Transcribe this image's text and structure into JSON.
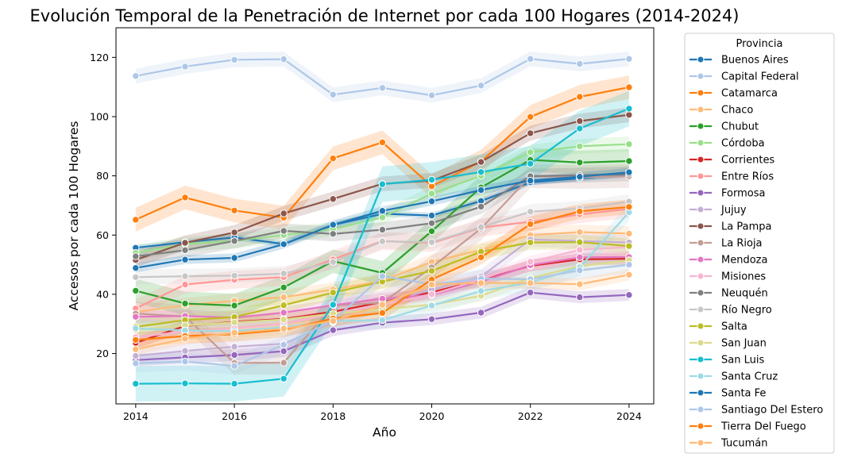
{
  "chart_data": {
    "type": "line",
    "title": "Evolución Temporal de la Penetración de Internet por cada 100 Hogares (2014-2024)",
    "xlabel": "Año",
    "ylabel": "Accesos por cada 100 Hogares",
    "xlim": [
      2013.6,
      2024.5
    ],
    "ylim": [
      3,
      130
    ],
    "xticks": [
      2014,
      2016,
      2018,
      2020,
      2022,
      2024
    ],
    "yticks": [
      20,
      40,
      60,
      80,
      100,
      120
    ],
    "grid": false,
    "legend_title": "Provincia",
    "legend_placement": "outside-right",
    "x": [
      2014,
      2015,
      2016,
      2017,
      2018,
      2019,
      2020,
      2021,
      2022,
      2023,
      2024
    ],
    "series": [
      {
        "name": "Buenos Aires",
        "color": "#1f77b4",
        "values": [
          55.7,
          57.6,
          59.2,
          57.0,
          63.4,
          67.2,
          66.6,
          71.5,
          77.8,
          79.2,
          80.5
        ],
        "band": 1.0
      },
      {
        "name": "Capital Federal",
        "color": "#aec7e8",
        "values": [
          113.7,
          116.9,
          119.2,
          119.4,
          107.4,
          109.7,
          107.2,
          110.5,
          119.5,
          117.8,
          119.5
        ],
        "band": 2.5
      },
      {
        "name": "Catamarca",
        "color": "#ff7f0e",
        "values": [
          65.2,
          72.7,
          68.3,
          65.9,
          85.9,
          91.3,
          76.5,
          84.8,
          99.9,
          106.7,
          109.9
        ],
        "band": 4.0
      },
      {
        "name": "Chaco",
        "color": "#ffbb78",
        "values": [
          34.0,
          36.3,
          37.8,
          39.0,
          41.6,
          44.5,
          51.0,
          55.0,
          60.0,
          61.0,
          60.5
        ],
        "band": 2.5
      },
      {
        "name": "Chubut",
        "color": "#2ca02c",
        "values": [
          41.2,
          36.9,
          36.2,
          42.3,
          51.2,
          47.2,
          61.3,
          76.1,
          85.4,
          84.5,
          85.0
        ],
        "band": 4.0
      },
      {
        "name": "Córdoba",
        "color": "#98df8a",
        "values": [
          54.0,
          57.0,
          58.0,
          60.0,
          62.0,
          66.0,
          74.0,
          80.0,
          88.0,
          90.0,
          90.7
        ],
        "band": 2.5
      },
      {
        "name": "Corrientes",
        "color": "#d62728",
        "values": [
          23.6,
          29.3,
          30.7,
          31.7,
          34.1,
          37.4,
          40.7,
          44.8,
          49.6,
          51.8,
          52.0
        ],
        "band": 2.0
      },
      {
        "name": "Entre Ríos",
        "color": "#ff9896",
        "values": [
          35.2,
          43.3,
          44.9,
          45.8,
          51.8,
          58.0,
          57.3,
          62.5,
          64.5,
          67.0,
          68.8
        ],
        "band": 3.0
      },
      {
        "name": "Formosa",
        "color": "#9467bd",
        "values": [
          17.8,
          18.7,
          19.5,
          20.8,
          27.9,
          30.4,
          31.6,
          33.8,
          40.6,
          39.0,
          39.8
        ],
        "band": 2.0
      },
      {
        "name": "Jujuy",
        "color": "#c5b0d5",
        "values": [
          19.2,
          20.9,
          22.3,
          23.3,
          30.6,
          37.0,
          41.5,
          46.0,
          58.5,
          58.0,
          57.5
        ],
        "band": 2.5
      },
      {
        "name": "La Pampa",
        "color": "#8c564b",
        "values": [
          51.6,
          57.4,
          60.9,
          67.3,
          72.2,
          77.3,
          78.4,
          84.7,
          94.4,
          98.5,
          100.6
        ],
        "band": 2.5
      },
      {
        "name": "La Rioja",
        "color": "#c49c94",
        "values": [
          33.5,
          32.5,
          16.8,
          16.9,
          36.2,
          37.2,
          49.1,
          62.2,
          79.9,
          79.6,
          79.9
        ],
        "band": 4.0
      },
      {
        "name": "Mendoza",
        "color": "#e377c2",
        "values": [
          32.4,
          32.7,
          32.1,
          33.8,
          36.3,
          38.5,
          39.8,
          44.3,
          49.8,
          52.5,
          52.6
        ],
        "band": 2.0
      },
      {
        "name": "Misiones",
        "color": "#f7b6d2",
        "values": [
          25.5,
          27.5,
          28.5,
          30.0,
          33.5,
          36.5,
          40.0,
          45.0,
          51.0,
          55.0,
          56.0
        ],
        "band": 2.0
      },
      {
        "name": "Neuquén",
        "color": "#7f7f7f",
        "values": [
          52.8,
          54.9,
          58.0,
          61.4,
          60.4,
          61.8,
          64.0,
          69.6,
          79.9,
          80.2,
          80.7
        ],
        "band": 2.5
      },
      {
        "name": "Río Negro",
        "color": "#c7c7c7",
        "values": [
          45.8,
          46.1,
          46.3,
          47.0,
          50.9,
          57.9,
          57.6,
          62.7,
          67.9,
          69.0,
          71.3
        ],
        "band": 2.5
      },
      {
        "name": "Salta",
        "color": "#bcbd22",
        "values": [
          29.0,
          31.3,
          32.3,
          36.3,
          40.6,
          44.3,
          47.9,
          54.4,
          57.5,
          57.6,
          56.3
        ],
        "band": 2.5
      },
      {
        "name": "San Juan",
        "color": "#dbdb8d",
        "values": [
          28.0,
          29.5,
          30.5,
          31.5,
          33.5,
          35.0,
          36.5,
          39.5,
          45.5,
          49.5,
          51.5
        ],
        "band": 2.0
      },
      {
        "name": "San Luis",
        "color": "#17becf",
        "values": [
          9.8,
          9.9,
          9.8,
          11.5,
          36.5,
          77.2,
          78.7,
          81.3,
          84.1,
          96.0,
          102.7
        ],
        "band": 6.0
      },
      {
        "name": "Santa Cruz",
        "color": "#9edae5",
        "values": [
          28.5,
          27.8,
          27.6,
          28.9,
          30.9,
          31.3,
          36.2,
          41.1,
          44.0,
          49.1,
          67.7
        ],
        "band": 3.0
      },
      {
        "name": "Santa Fe",
        "color": "#1f77b4",
        "values": [
          48.9,
          51.7,
          52.3,
          56.9,
          63.5,
          68.2,
          71.4,
          75.2,
          78.4,
          79.7,
          81.2
        ],
        "band": 1.5
      },
      {
        "name": "Santiago Del Estero",
        "color": "#aec7e8",
        "values": [
          16.7,
          17.3,
          15.8,
          23.0,
          31.1,
          46.1,
          43.4,
          45.3,
          45.1,
          48.1,
          50.0
        ],
        "band": 3.0
      },
      {
        "name": "Tierra Del Fuego",
        "color": "#ff7f0e",
        "values": [
          24.6,
          25.9,
          26.5,
          28.0,
          31.8,
          33.7,
          45.0,
          52.5,
          63.7,
          68.0,
          69.5
        ],
        "band": 2.5
      },
      {
        "name": "Tucumán",
        "color": "#ffbb78",
        "values": [
          21.4,
          25.0,
          27.0,
          28.4,
          31.0,
          36.5,
          43.3,
          43.8,
          43.8,
          43.4,
          46.6
        ],
        "band": 2.0
      }
    ]
  }
}
